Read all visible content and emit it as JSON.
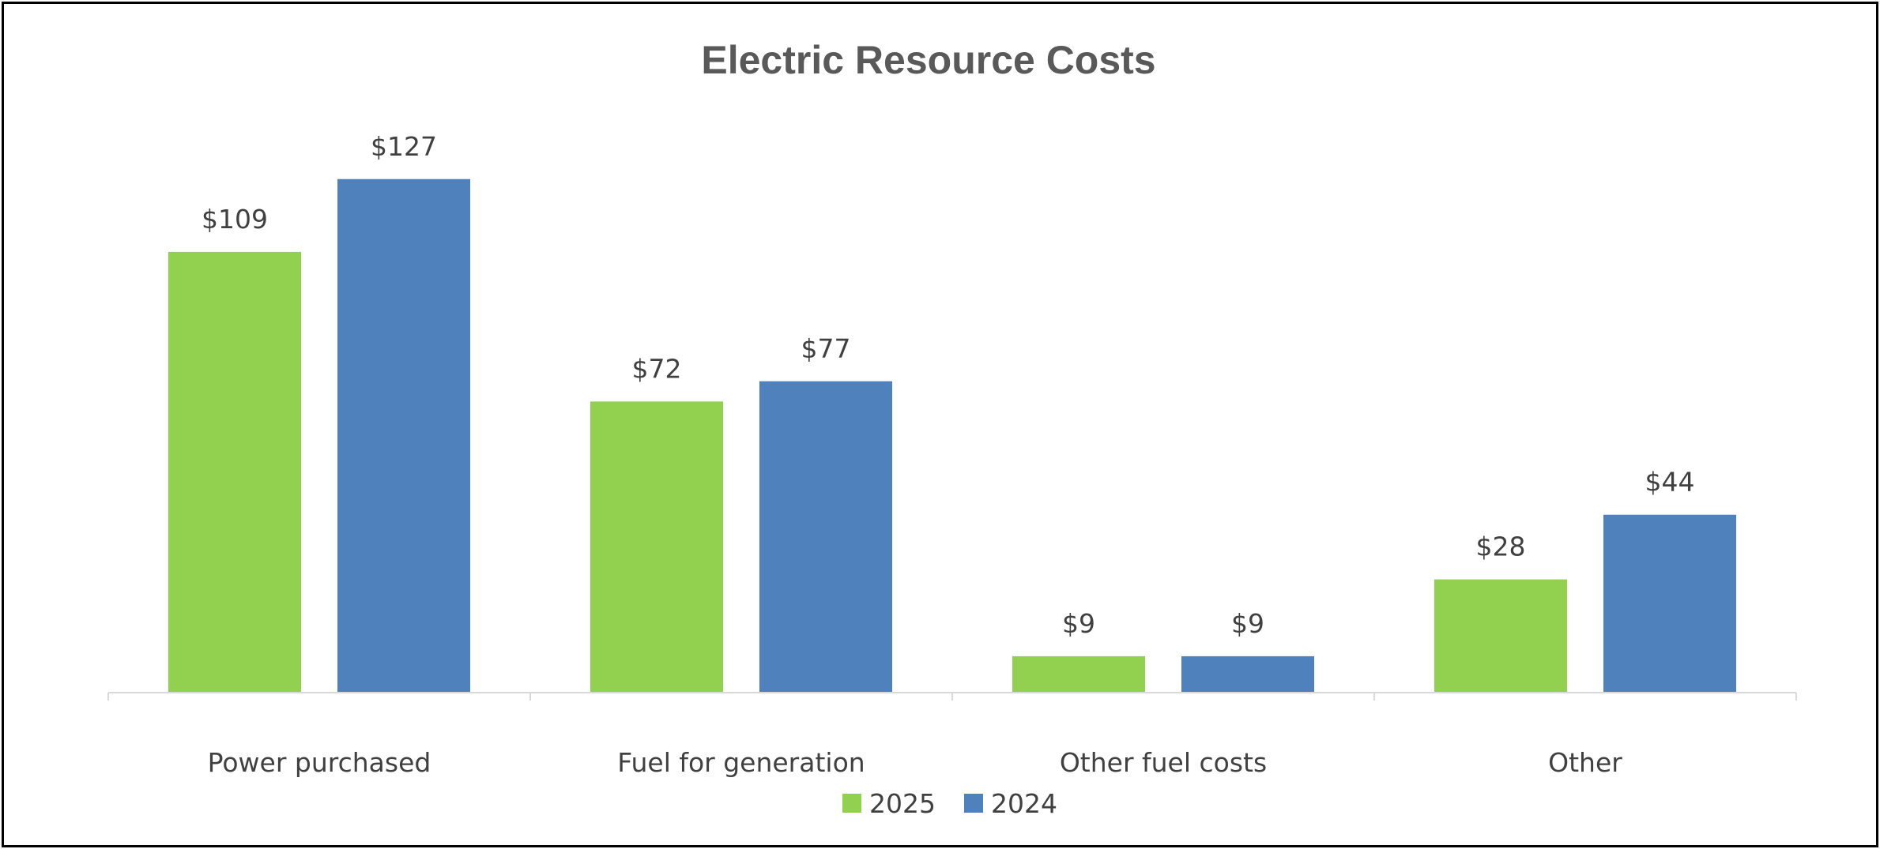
{
  "chart_data": {
    "type": "bar",
    "title": "Electric Resource Costs",
    "categories": [
      "Power purchased",
      "Fuel for generation",
      "Other fuel costs",
      "Other"
    ],
    "series": [
      {
        "name": "2025",
        "color": "#92d050",
        "values": [
          109,
          72,
          9,
          28
        ],
        "labels": [
          "$109",
          "$72",
          "$9",
          "$28"
        ]
      },
      {
        "name": "2024",
        "color": "#4f81bd",
        "values": [
          127,
          77,
          9,
          44
        ],
        "labels": [
          "$127",
          "$77",
          "$9",
          "$44"
        ]
      }
    ],
    "ylim": [
      0,
      127
    ],
    "grid": false,
    "legend": "bottom",
    "xlabel": "",
    "ylabel": ""
  }
}
